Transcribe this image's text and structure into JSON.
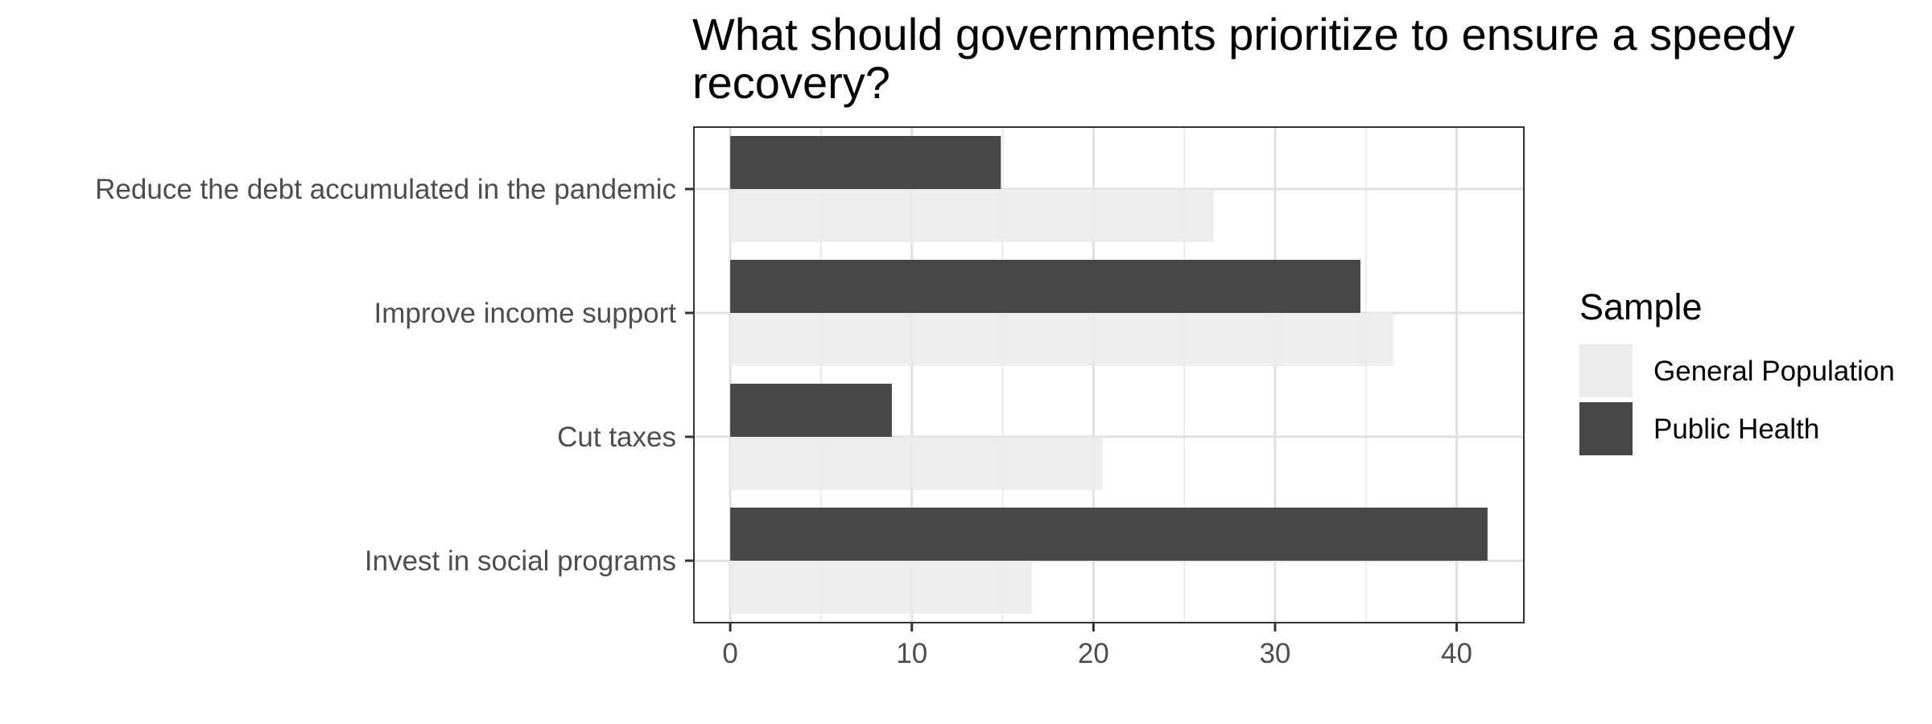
{
  "chart_data": {
    "type": "bar",
    "orientation": "horizontal",
    "title_lines": [
      "What should governments prioritize to ensure a speedy",
      "recovery?"
    ],
    "xlabel": "",
    "ylabel": "",
    "categories": [
      "Reduce the debt accumulated in the pandemic",
      "Improve income support",
      "Cut taxes",
      "Invest in social programs"
    ],
    "series": [
      {
        "name": "General Population",
        "color": "#ebebeb",
        "values": [
          26.6,
          36.5,
          20.5,
          16.6
        ]
      },
      {
        "name": "Public Health",
        "color": "#474747",
        "values": [
          14.9,
          34.7,
          8.9,
          41.7
        ]
      }
    ],
    "xlim": [
      -2,
      43.7
    ],
    "xticks": [
      0,
      10,
      20,
      30,
      40
    ],
    "grid": true,
    "legend": {
      "title": "Sample",
      "position": "right"
    }
  }
}
